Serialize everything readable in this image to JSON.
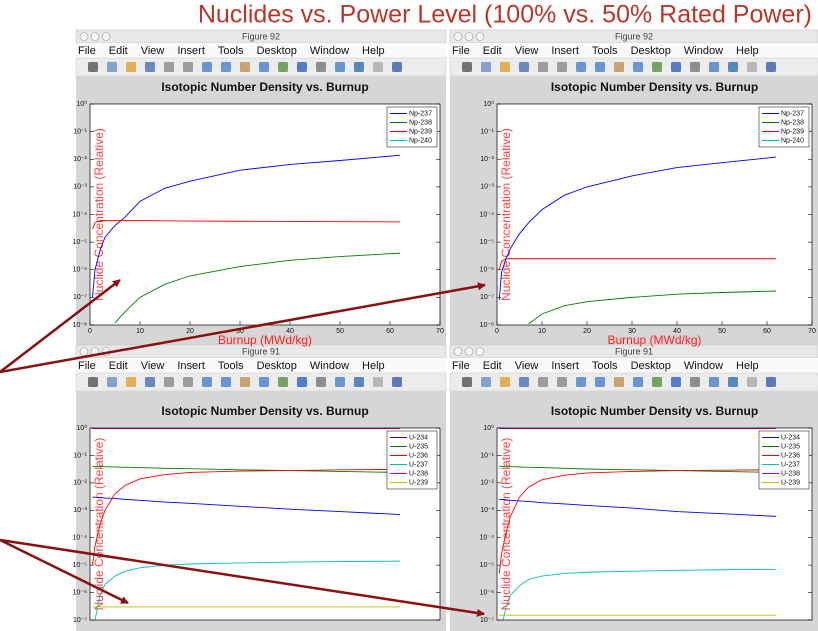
{
  "slide_title": "Nuclides vs. Power Level (100% vs. 50% Rated Power)",
  "windows": [
    {
      "title": "Figure 92",
      "menu": [
        "File",
        "Edit",
        "View",
        "Insert",
        "Tools",
        "Desktop",
        "Window",
        "Help"
      ]
    },
    {
      "title": "Figure 92",
      "menu": [
        "File",
        "Edit",
        "View",
        "Insert",
        "Tools",
        "Desktop",
        "Window",
        "Help"
      ]
    },
    {
      "title": "Figure 91",
      "menu": [
        "File",
        "Edit",
        "View",
        "Insert",
        "Tools",
        "Desktop",
        "Window",
        "Help"
      ]
    },
    {
      "title": "Figure 91",
      "menu": [
        "File",
        "Edit",
        "View",
        "Insert",
        "Tools",
        "Desktop",
        "Window",
        "Help"
      ]
    }
  ],
  "chart_data": [
    {
      "type": "line",
      "title": "Isotopic Number Density vs. Burnup",
      "xlabel": "Burnup (MWd/kg)",
      "ylabel": "Nuclide Concentration (Relative)",
      "log_y": true,
      "legend": "upper right",
      "xlim": [
        0,
        70
      ],
      "xticks": [
        0,
        10,
        20,
        30,
        40,
        50,
        60,
        70
      ],
      "ylim": [
        1e-08,
        1
      ],
      "yticks": [
        {
          "value": 1,
          "label": "10⁰"
        },
        {
          "value": 0.1,
          "label": "10⁻¹"
        },
        {
          "value": 0.01,
          "label": "10⁻²"
        },
        {
          "value": 0.001,
          "label": "10⁻³"
        },
        {
          "value": 0.0001,
          "label": "10⁻⁴"
        },
        {
          "value": 1e-05,
          "label": "10⁻⁵"
        },
        {
          "value": 1e-06,
          "label": "10⁻⁶"
        },
        {
          "value": 1e-07,
          "label": "10⁻⁷"
        },
        {
          "value": 1e-08,
          "label": "10⁻⁸"
        }
      ],
      "x": [
        0.5,
        1,
        2,
        3,
        5,
        7,
        10,
        15,
        20,
        30,
        40,
        50,
        62
      ],
      "series": [
        {
          "name": "Np-237",
          "color": "#0000ff",
          "values": [
            1e-07,
            1e-06,
            5e-06,
            1.5e-05,
            4e-05,
            8e-05,
            0.0003,
            0.0009,
            0.0016,
            0.004,
            0.0065,
            0.009,
            0.014
          ]
        },
        {
          "name": "Np-238",
          "color": "#008000",
          "values": [
            null,
            null,
            null,
            null,
            1.2e-08,
            3e-08,
            1e-07,
            3e-07,
            6e-07,
            1.3e-06,
            2.2e-06,
            3e-06,
            4e-06
          ]
        },
        {
          "name": "Np-239",
          "color": "#ff0000",
          "values": [
            3e-05,
            5e-05,
            6e-05,
            6e-05,
            6e-05,
            6e-05,
            6e-05,
            5.9e-05,
            5.8e-05,
            5.7e-05,
            5.6e-05,
            5.5e-05,
            5.4e-05
          ]
        },
        {
          "name": "Np-240",
          "color": "#00bfbf",
          "values": [
            null,
            null,
            null,
            null,
            null,
            null,
            null,
            null,
            null,
            null,
            null,
            null,
            null
          ]
        }
      ]
    },
    {
      "type": "line",
      "title": "Isotopic Number Density vs. Burnup",
      "xlabel": "Burnup (MWd/kg)",
      "ylabel": "Nuclide Concentration (Relative)",
      "log_y": true,
      "legend": "upper right",
      "xlim": [
        0,
        70
      ],
      "xticks": [
        0,
        10,
        20,
        30,
        40,
        50,
        60,
        70
      ],
      "ylim": [
        1e-08,
        1
      ],
      "yticks": [
        {
          "value": 1,
          "label": "10⁰"
        },
        {
          "value": 0.1,
          "label": "10⁻¹"
        },
        {
          "value": 0.01,
          "label": "10⁻²"
        },
        {
          "value": 0.001,
          "label": "10⁻³"
        },
        {
          "value": 0.0001,
          "label": "10⁻⁴"
        },
        {
          "value": 1e-05,
          "label": "10⁻⁵"
        },
        {
          "value": 1e-06,
          "label": "10⁻⁶"
        },
        {
          "value": 1e-07,
          "label": "10⁻⁷"
        },
        {
          "value": 1e-08,
          "label": "10⁻⁸"
        }
      ],
      "x": [
        0.5,
        1,
        2,
        3,
        5,
        7,
        10,
        15,
        20,
        30,
        40,
        50,
        62
      ],
      "series": [
        {
          "name": "Np-237",
          "color": "#0000ff",
          "values": [
            8e-08,
            8e-07,
            2.5e-06,
            6e-06,
            2e-05,
            5e-05,
            0.00015,
            0.0005,
            0.001,
            0.0025,
            0.005,
            0.0075,
            0.012
          ]
        },
        {
          "name": "Np-238",
          "color": "#008000",
          "values": [
            null,
            null,
            null,
            null,
            null,
            1.1e-08,
            2.5e-08,
            5e-08,
            7e-08,
            1e-07,
            1.3e-07,
            1.5e-07,
            1.7e-07
          ]
        },
        {
          "name": "Np-239",
          "color": "#ff0000",
          "values": [
            1e-06,
            2e-06,
            2.5e-06,
            2.5e-06,
            2.5e-06,
            2.5e-06,
            2.5e-06,
            2.5e-06,
            2.5e-06,
            2.5e-06,
            2.5e-06,
            2.5e-06,
            2.5e-06
          ]
        },
        {
          "name": "Np-240",
          "color": "#00bfbf",
          "values": [
            null,
            null,
            null,
            null,
            null,
            null,
            null,
            null,
            null,
            null,
            null,
            null,
            null
          ]
        }
      ]
    },
    {
      "type": "line",
      "title": "Isotopic Number Density vs. Burnup",
      "ylabel": "Nuclide Concentration (Relative)",
      "log_y": true,
      "legend": "upper right",
      "xlim": [
        0,
        70
      ],
      "ylim": [
        1e-07,
        1
      ],
      "yticks": [
        {
          "value": 1,
          "label": "10⁰"
        },
        {
          "value": 0.1,
          "label": "10⁻¹"
        },
        {
          "value": 0.01,
          "label": "10⁻²"
        },
        {
          "value": 0.001,
          "label": "10⁻³"
        },
        {
          "value": 0.0001,
          "label": "10⁻⁴"
        },
        {
          "value": 1e-05,
          "label": "10⁻⁵"
        },
        {
          "value": 1e-06,
          "label": "10⁻⁶"
        },
        {
          "value": 1e-07,
          "label": "10⁻⁷"
        }
      ],
      "x": [
        0.5,
        1,
        2,
        3,
        5,
        7,
        10,
        15,
        20,
        30,
        40,
        50,
        62
      ],
      "series": [
        {
          "name": "U-234",
          "color": "#0000ff",
          "values": [
            0.003,
            0.003,
            0.0029,
            0.0028,
            0.0027,
            0.0025,
            0.0023,
            0.002,
            0.0018,
            0.0014,
            0.0011,
            0.0009,
            0.0007
          ]
        },
        {
          "name": "U-235",
          "color": "#008000",
          "values": [
            0.04,
            0.04,
            0.039,
            0.039,
            0.038,
            0.037,
            0.036,
            0.034,
            0.033,
            0.03,
            0.028,
            0.026,
            0.024
          ]
        },
        {
          "name": "U-236",
          "color": "#ff0000",
          "values": [
            1e-05,
            5e-05,
            0.0003,
            0.001,
            0.004,
            0.008,
            0.014,
            0.02,
            0.024,
            0.027,
            0.028,
            0.03,
            0.031
          ]
        },
        {
          "name": "U-237",
          "color": "#00bfbf",
          "values": [
            null,
            1e-07,
            8e-07,
            2e-06,
            4e-06,
            6e-06,
            8e-06,
            1e-05,
            1.1e-05,
            1.2e-05,
            1.3e-05,
            1.35e-05,
            1.4e-05
          ]
        },
        {
          "name": "U-238",
          "color": "#bf00bf",
          "values": [
            0.95,
            0.95,
            0.95,
            0.95,
            0.95,
            0.95,
            0.95,
            0.95,
            0.95,
            0.95,
            0.95,
            0.95,
            0.95
          ]
        },
        {
          "name": "U-239",
          "color": "#bfbf00",
          "values": [
            3e-07,
            3e-07,
            3e-07,
            3e-07,
            3e-07,
            3e-07,
            3e-07,
            3e-07,
            3e-07,
            3e-07,
            3e-07,
            3e-07,
            3e-07
          ]
        }
      ]
    },
    {
      "type": "line",
      "title": "Isotopic Number Density vs. Burnup",
      "ylabel": "Nuclide Concentration (Relative)",
      "log_y": true,
      "legend": "upper right",
      "xlim": [
        0,
        70
      ],
      "ylim": [
        1e-07,
        1
      ],
      "yticks": [
        {
          "value": 1,
          "label": "10⁰"
        },
        {
          "value": 0.1,
          "label": "10⁻¹"
        },
        {
          "value": 0.01,
          "label": "10⁻²"
        },
        {
          "value": 0.001,
          "label": "10⁻³"
        },
        {
          "value": 0.0001,
          "label": "10⁻⁴"
        },
        {
          "value": 1e-05,
          "label": "10⁻⁵"
        },
        {
          "value": 1e-06,
          "label": "10⁻⁶"
        },
        {
          "value": 1e-07,
          "label": "10⁻⁷"
        }
      ],
      "x": [
        0.5,
        1,
        2,
        3,
        5,
        7,
        10,
        15,
        20,
        30,
        40,
        50,
        62
      ],
      "series": [
        {
          "name": "U-234",
          "color": "#0000ff",
          "values": [
            0.0025,
            0.0025,
            0.0024,
            0.0023,
            0.0022,
            0.0021,
            0.0019,
            0.0017,
            0.0015,
            0.0012,
            0.0009,
            0.00075,
            0.0006
          ]
        },
        {
          "name": "U-235",
          "color": "#008000",
          "values": [
            0.04,
            0.04,
            0.039,
            0.039,
            0.038,
            0.037,
            0.036,
            0.034,
            0.032,
            0.03,
            0.028,
            0.026,
            0.024
          ]
        },
        {
          "name": "U-236",
          "color": "#ff0000",
          "values": [
            5e-06,
            2.5e-05,
            0.00015,
            0.0006,
            0.003,
            0.007,
            0.013,
            0.019,
            0.023,
            0.026,
            0.028,
            0.029,
            0.03
          ]
        },
        {
          "name": "U-237",
          "color": "#00bfbf",
          "values": [
            null,
            5e-08,
            3e-07,
            8e-07,
            1.8e-06,
            3e-06,
            4e-06,
            5e-06,
            5.5e-06,
            6e-06,
            6.5e-06,
            6.8e-06,
            7e-06
          ]
        },
        {
          "name": "U-238",
          "color": "#bf00bf",
          "values": [
            0.95,
            0.95,
            0.95,
            0.95,
            0.95,
            0.95,
            0.95,
            0.95,
            0.95,
            0.95,
            0.95,
            0.95,
            0.95
          ]
        },
        {
          "name": "U-239",
          "color": "#bfbf00",
          "values": [
            1.5e-07,
            1.5e-07,
            1.5e-07,
            1.5e-07,
            1.5e-07,
            1.5e-07,
            1.5e-07,
            1.5e-07,
            1.5e-07,
            1.5e-07,
            1.5e-07,
            1.5e-07,
            1.5e-07
          ]
        }
      ]
    }
  ]
}
